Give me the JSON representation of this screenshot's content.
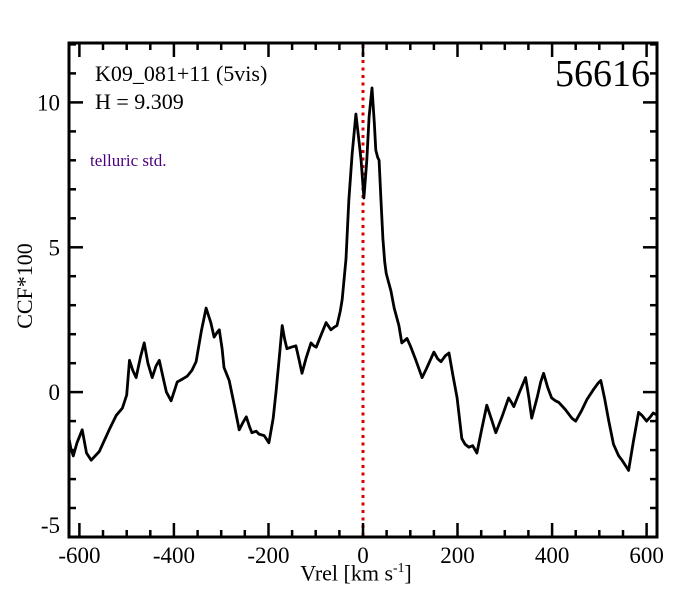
{
  "figure": {
    "annotations": {
      "field_label": "K09_081+11 (5vis)",
      "h_mag_label": "H = 9.309",
      "telluric_label": "telluric std.",
      "mjd_label": "56616"
    },
    "colors": {
      "background": "#ffffff",
      "axis": "#000000",
      "curve": "#000000",
      "ref_line": "#dd0000",
      "telluric_text": "#4b0082"
    }
  },
  "chart_data": {
    "type": "line",
    "title": "",
    "xlabel": "Vrel [km s^-1]",
    "xlabel_parts": {
      "pre": "Vrel [km s",
      "sup": "-1",
      "post": "]"
    },
    "ylabel": "CCF*100",
    "xlim": [
      -622,
      622
    ],
    "ylim": [
      -5,
      12.05
    ],
    "grid": false,
    "legend": null,
    "x_major_ticks": [
      -600,
      -400,
      -200,
      0,
      200,
      400,
      600
    ],
    "x_tick_labels": [
      "-600",
      "-400",
      "-200",
      "0",
      "200",
      "400",
      "600"
    ],
    "x_minor_step": 50,
    "y_major_ticks": [
      -5,
      0,
      5,
      10
    ],
    "y_tick_labels": [
      "-5",
      "0",
      "5",
      "10"
    ],
    "y_minor_step": 1,
    "ref_line_x": 0,
    "series": [
      {
        "name": "ccf",
        "points": [
          [
            -622,
            -1.6
          ],
          [
            -618,
            -1.95
          ],
          [
            -613,
            -2.2
          ],
          [
            -605,
            -1.75
          ],
          [
            -594,
            -1.3
          ],
          [
            -585,
            -2.1
          ],
          [
            -575,
            -2.35
          ],
          [
            -558,
            -2.05
          ],
          [
            -537,
            -1.3
          ],
          [
            -522,
            -0.8
          ],
          [
            -509,
            -0.55
          ],
          [
            -500,
            -0.1
          ],
          [
            -494,
            1.1
          ],
          [
            -487,
            0.75
          ],
          [
            -480,
            0.5
          ],
          [
            -471,
            1.2
          ],
          [
            -463,
            1.7
          ],
          [
            -455,
            1.0
          ],
          [
            -446,
            0.5
          ],
          [
            -438,
            0.9
          ],
          [
            -431,
            1.1
          ],
          [
            -423,
            0.5
          ],
          [
            -416,
            0.0
          ],
          [
            -406,
            -0.3
          ],
          [
            -398,
            0.1
          ],
          [
            -393,
            0.35
          ],
          [
            -382,
            0.45
          ],
          [
            -372,
            0.55
          ],
          [
            -362,
            0.75
          ],
          [
            -353,
            1.05
          ],
          [
            -342,
            2.1
          ],
          [
            -332,
            2.9
          ],
          [
            -322,
            2.4
          ],
          [
            -315,
            1.9
          ],
          [
            -309,
            2.05
          ],
          [
            -304,
            2.15
          ],
          [
            -298,
            1.5
          ],
          [
            -294,
            0.85
          ],
          [
            -283,
            0.4
          ],
          [
            -273,
            -0.4
          ],
          [
            -262,
            -1.3
          ],
          [
            -254,
            -1.05
          ],
          [
            -247,
            -0.85
          ],
          [
            -240,
            -1.2
          ],
          [
            -235,
            -1.4
          ],
          [
            -226,
            -1.35
          ],
          [
            -220,
            -1.45
          ],
          [
            -209,
            -1.5
          ],
          [
            -199,
            -1.75
          ],
          [
            -190,
            -0.9
          ],
          [
            -184,
            0.0
          ],
          [
            -177,
            1.2
          ],
          [
            -171,
            2.3
          ],
          [
            -166,
            1.85
          ],
          [
            -161,
            1.5
          ],
          [
            -152,
            1.55
          ],
          [
            -142,
            1.6
          ],
          [
            -135,
            1.1
          ],
          [
            -129,
            0.65
          ],
          [
            -120,
            1.2
          ],
          [
            -110,
            1.7
          ],
          [
            -104,
            1.6
          ],
          [
            -99,
            1.55
          ],
          [
            -88,
            2.0
          ],
          [
            -78,
            2.4
          ],
          [
            -68,
            2.15
          ],
          [
            -60,
            2.25
          ],
          [
            -55,
            2.3
          ],
          [
            -48,
            2.8
          ],
          [
            -44,
            3.2
          ],
          [
            -36,
            4.6
          ],
          [
            -30,
            6.6
          ],
          [
            -23,
            8.2
          ],
          [
            -15,
            9.6
          ],
          [
            -8,
            8.6
          ],
          [
            -4,
            8.0
          ],
          [
            2,
            6.7
          ],
          [
            8,
            8.0
          ],
          [
            13,
            9.5
          ],
          [
            19,
            10.5
          ],
          [
            24,
            9.3
          ],
          [
            27,
            8.35
          ],
          [
            31,
            8.1
          ],
          [
            34,
            8.0
          ],
          [
            38,
            6.6
          ],
          [
            42,
            5.3
          ],
          [
            46,
            4.5
          ],
          [
            49,
            4.1
          ],
          [
            54,
            3.8
          ],
          [
            59,
            3.5
          ],
          [
            66,
            2.9
          ],
          [
            76,
            2.3
          ],
          [
            82,
            1.7
          ],
          [
            93,
            1.85
          ],
          [
            100,
            1.6
          ],
          [
            112,
            1.1
          ],
          [
            125,
            0.5
          ],
          [
            134,
            0.8
          ],
          [
            145,
            1.2
          ],
          [
            150,
            1.38
          ],
          [
            158,
            1.15
          ],
          [
            165,
            1.05
          ],
          [
            174,
            1.25
          ],
          [
            182,
            1.35
          ],
          [
            190,
            0.6
          ],
          [
            199,
            -0.2
          ],
          [
            209,
            -1.6
          ],
          [
            216,
            -1.8
          ],
          [
            224,
            -1.9
          ],
          [
            232,
            -1.85
          ],
          [
            241,
            -2.1
          ],
          [
            251,
            -1.3
          ],
          [
            262,
            -0.45
          ],
          [
            272,
            -0.95
          ],
          [
            281,
            -1.4
          ],
          [
            294,
            -0.85
          ],
          [
            308,
            -0.2
          ],
          [
            314,
            -0.35
          ],
          [
            319,
            -0.5
          ],
          [
            331,
            0.0
          ],
          [
            344,
            0.5
          ],
          [
            351,
            -0.2
          ],
          [
            357,
            -0.9
          ],
          [
            369,
            -0.15
          ],
          [
            376,
            0.35
          ],
          [
            382,
            0.65
          ],
          [
            391,
            0.15
          ],
          [
            399,
            -0.2
          ],
          [
            407,
            -0.3
          ],
          [
            414,
            -0.35
          ],
          [
            428,
            -0.6
          ],
          [
            442,
            -0.9
          ],
          [
            450,
            -1.0
          ],
          [
            462,
            -0.65
          ],
          [
            474,
            -0.25
          ],
          [
            488,
            0.1
          ],
          [
            497,
            0.3
          ],
          [
            503,
            0.4
          ],
          [
            511,
            -0.2
          ],
          [
            520,
            -1.0
          ],
          [
            530,
            -1.8
          ],
          [
            541,
            -2.2
          ],
          [
            548,
            -2.35
          ],
          [
            556,
            -2.55
          ],
          [
            562,
            -2.7
          ],
          [
            572,
            -1.7
          ],
          [
            583,
            -0.7
          ],
          [
            590,
            -0.8
          ],
          [
            600,
            -1.0
          ],
          [
            608,
            -0.85
          ],
          [
            614,
            -0.72
          ],
          [
            621,
            -0.78
          ]
        ]
      }
    ]
  }
}
